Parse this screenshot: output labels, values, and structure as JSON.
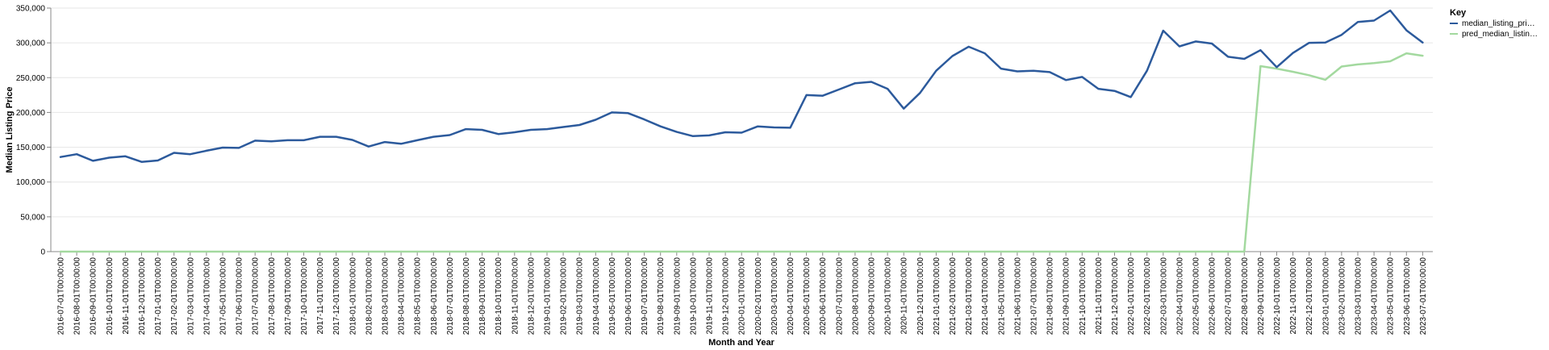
{
  "chart_data": {
    "type": "line",
    "xlabel": "Month and Year",
    "ylabel": "Median Listing Price",
    "ylim": [
      0,
      350000
    ],
    "yticks": [
      0,
      50000,
      100000,
      150000,
      200000,
      250000,
      300000,
      350000
    ],
    "ytick_labels": [
      "0",
      "50,000",
      "100,000",
      "150,000",
      "200,000",
      "250,000",
      "300,000",
      "350,000"
    ],
    "grid": true,
    "legend": {
      "title": "Key",
      "placement": "top-right"
    },
    "x": [
      "2016-07-01T00:00:00",
      "2016-08-01T00:00:00",
      "2016-09-01T00:00:00",
      "2016-10-01T00:00:00",
      "2016-11-01T00:00:00",
      "2016-12-01T00:00:00",
      "2017-01-01T00:00:00",
      "2017-02-01T00:00:00",
      "2017-03-01T00:00:00",
      "2017-04-01T00:00:00",
      "2017-05-01T00:00:00",
      "2017-06-01T00:00:00",
      "2017-07-01T00:00:00",
      "2017-08-01T00:00:00",
      "2017-09-01T00:00:00",
      "2017-10-01T00:00:00",
      "2017-11-01T00:00:00",
      "2017-12-01T00:00:00",
      "2018-01-01T00:00:00",
      "2018-02-01T00:00:00",
      "2018-03-01T00:00:00",
      "2018-04-01T00:00:00",
      "2018-05-01T00:00:00",
      "2018-06-01T00:00:00",
      "2018-07-01T00:00:00",
      "2018-08-01T00:00:00",
      "2018-09-01T00:00:00",
      "2018-10-01T00:00:00",
      "2018-11-01T00:00:00",
      "2018-12-01T00:00:00",
      "2019-01-01T00:00:00",
      "2019-02-01T00:00:00",
      "2019-03-01T00:00:00",
      "2019-04-01T00:00:00",
      "2019-05-01T00:00:00",
      "2019-06-01T00:00:00",
      "2019-07-01T00:00:00",
      "2019-08-01T00:00:00",
      "2019-09-01T00:00:00",
      "2019-10-01T00:00:00",
      "2019-11-01T00:00:00",
      "2019-12-01T00:00:00",
      "2020-01-01T00:00:00",
      "2020-02-01T00:00:00",
      "2020-03-01T00:00:00",
      "2020-04-01T00:00:00",
      "2020-05-01T00:00:00",
      "2020-06-01T00:00:00",
      "2020-07-01T00:00:00",
      "2020-08-01T00:00:00",
      "2020-09-01T00:00:00",
      "2020-10-01T00:00:00",
      "2020-11-01T00:00:00",
      "2020-12-01T00:00:00",
      "2021-01-01T00:00:00",
      "2021-02-01T00:00:00",
      "2021-03-01T00:00:00",
      "2021-04-01T00:00:00",
      "2021-05-01T00:00:00",
      "2021-06-01T00:00:00",
      "2021-07-01T00:00:00",
      "2021-08-01T00:00:00",
      "2021-09-01T00:00:00",
      "2021-10-01T00:00:00",
      "2021-11-01T00:00:00",
      "2021-12-01T00:00:00",
      "2022-01-01T00:00:00",
      "2022-02-01T00:00:00",
      "2022-03-01T00:00:00",
      "2022-04-01T00:00:00",
      "2022-05-01T00:00:00",
      "2022-06-01T00:00:00",
      "2022-07-01T00:00:00",
      "2022-08-01T00:00:00",
      "2022-09-01T00:00:00",
      "2022-10-01T00:00:00",
      "2022-11-01T00:00:00",
      "2022-12-01T00:00:00",
      "2023-01-01T00:00:00",
      "2023-02-01T00:00:00",
      "2023-03-01T00:00:00",
      "2023-04-01T00:00:00",
      "2023-05-01T00:00:00",
      "2023-06-01T00:00:00",
      "2023-07-01T00:00:00"
    ],
    "series": [
      {
        "name": "median_listing_pri…",
        "color": "#2c5a9c",
        "values": [
          136000,
          140000,
          130500,
          135000,
          137000,
          129000,
          131000,
          142000,
          140000,
          145000,
          149500,
          149000,
          159500,
          158500,
          160000,
          160000,
          165000,
          165000,
          160500,
          151000,
          157500,
          155000,
          160000,
          165000,
          167500,
          176000,
          175000,
          169000,
          171500,
          175000,
          176000,
          179000,
          182000,
          189500,
          200000,
          199000,
          190000,
          180000,
          172000,
          166000,
          167000,
          171500,
          171000,
          180000,
          178500,
          178000,
          225000,
          224000,
          233000,
          242000,
          244000,
          234000,
          205500,
          228000,
          260000,
          281000,
          294500,
          285000,
          263000,
          259000,
          260000,
          258000,
          246500,
          251000,
          234000,
          231000,
          222000,
          260000,
          317500,
          295000,
          302000,
          299000,
          280000,
          277000,
          289500,
          265000,
          285500,
          300000,
          300500,
          311500,
          330000,
          332000,
          346500,
          318000,
          300500
        ]
      },
      {
        "name": "pred_median_listin…",
        "color": "#a3d99f",
        "values": [
          0,
          0,
          0,
          0,
          0,
          0,
          0,
          0,
          0,
          0,
          0,
          0,
          0,
          0,
          0,
          0,
          0,
          0,
          0,
          0,
          0,
          0,
          0,
          0,
          0,
          0,
          0,
          0,
          0,
          0,
          0,
          0,
          0,
          0,
          0,
          0,
          0,
          0,
          0,
          0,
          0,
          0,
          0,
          0,
          0,
          0,
          0,
          0,
          0,
          0,
          0,
          0,
          0,
          0,
          0,
          0,
          0,
          0,
          0,
          0,
          0,
          0,
          0,
          0,
          0,
          0,
          0,
          0,
          0,
          0,
          0,
          0,
          0,
          0,
          266500,
          263000,
          258500,
          253500,
          247000,
          266000,
          269000,
          271000,
          273500,
          285000,
          281500
        ]
      }
    ]
  }
}
